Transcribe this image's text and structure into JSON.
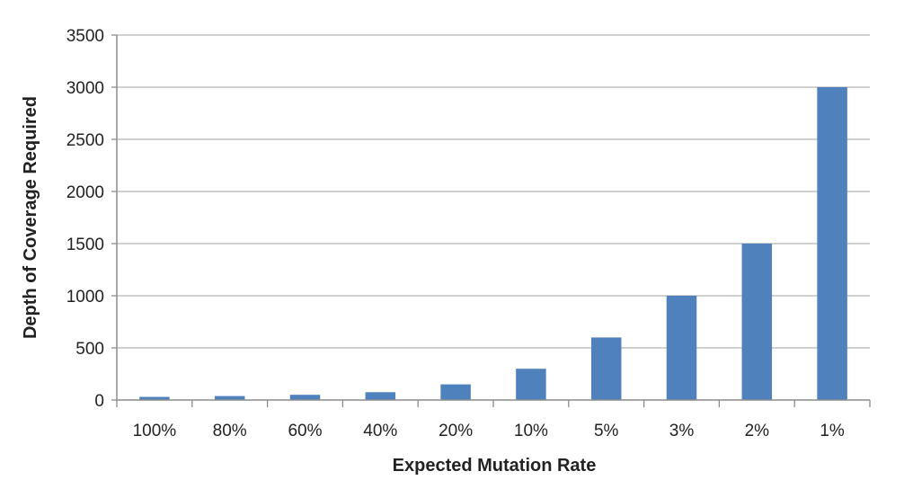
{
  "chart_data": {
    "type": "bar",
    "title": "",
    "xlabel": "Expected Mutation Rate",
    "ylabel": "Depth of Coverage Required",
    "categories": [
      "100%",
      "80%",
      "60%",
      "40%",
      "20%",
      "10%",
      "5%",
      "3%",
      "2%",
      "1%"
    ],
    "values": [
      30,
      38,
      50,
      75,
      150,
      300,
      600,
      1000,
      1500,
      3000
    ],
    "ylim": [
      0,
      3500
    ],
    "yticks": [
      0,
      500,
      1000,
      1500,
      2000,
      2500,
      3000,
      3500
    ],
    "ytick_labels": [
      "0",
      "500",
      "1000",
      "1500",
      "2000",
      "2500",
      "3000",
      "3500"
    ],
    "grid": "horizontal",
    "legend": "none",
    "bar_color": "#4f81bd",
    "gridline_color": "#b3b3b3",
    "axis_color": "#8c8c8c"
  }
}
